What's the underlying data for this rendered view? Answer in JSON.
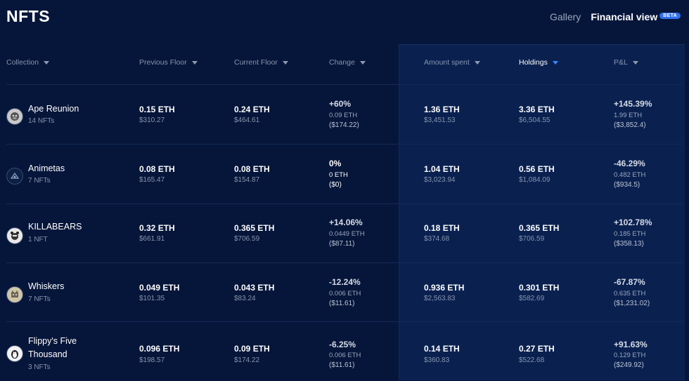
{
  "page": {
    "title": "NFTS",
    "tabs": {
      "gallery": "Gallery",
      "financial": "Financial view",
      "beta": "BETA"
    }
  },
  "columns": {
    "collection": "Collection",
    "previous_floor": "Previous Floor",
    "current_floor": "Current Floor",
    "change": "Change",
    "amount_spent": "Amount spent",
    "holdings": "Holdings",
    "pnl": "P&L"
  },
  "rows": [
    {
      "name": "Ape Reunion",
      "count": "14 NFTs",
      "avatar_icon": "ape-avatar-icon",
      "prev_eth": "0.15 ETH",
      "prev_usd": "$310.27",
      "curr_eth": "0.24 ETH",
      "curr_usd": "$464.61",
      "change_pct": "+60%",
      "change_eth": "0.09 ETH",
      "change_usd": "($174.22)",
      "spent_eth": "1.36 ETH",
      "spent_usd": "$3,451.53",
      "hold_eth": "3.36 ETH",
      "hold_usd": "$6,504.55",
      "pnl_pct": "+145.39%",
      "pnl_eth": "1.99 ETH",
      "pnl_usd": "($3,852.4)"
    },
    {
      "name": "Animetas",
      "count": "7 NFTs",
      "avatar_icon": "animetas-avatar-icon",
      "prev_eth": "0.08 ETH",
      "prev_usd": "$165.47",
      "curr_eth": "0.08 ETH",
      "curr_usd": "$154.87",
      "change_pct": "0%",
      "change_eth": "0 ETH",
      "change_usd": "($0)",
      "spent_eth": "1.04 ETH",
      "spent_usd": "$3,023.94",
      "hold_eth": "0.56 ETH",
      "hold_usd": "$1,084.09",
      "pnl_pct": "-46.29%",
      "pnl_eth": "0.482 ETH",
      "pnl_usd": "($934.5)"
    },
    {
      "name": "KILLABEARS",
      "count": "1 NFT",
      "avatar_icon": "bear-avatar-icon",
      "prev_eth": "0.32 ETH",
      "prev_usd": "$661.91",
      "curr_eth": "0.365 ETH",
      "curr_usd": "$706.59",
      "change_pct": "+14.06%",
      "change_eth": "0.0449 ETH",
      "change_usd": "($87.11)",
      "spent_eth": "0.18 ETH",
      "spent_usd": "$374.68",
      "hold_eth": "0.365 ETH",
      "hold_usd": "$706.59",
      "pnl_pct": "+102.78%",
      "pnl_eth": "0.185 ETH",
      "pnl_usd": "($358.13)"
    },
    {
      "name": "Whiskers",
      "count": "7 NFTs",
      "avatar_icon": "cat-avatar-icon",
      "prev_eth": "0.049 ETH",
      "prev_usd": "$101.35",
      "curr_eth": "0.043 ETH",
      "curr_usd": "$83.24",
      "change_pct": "-12.24%",
      "change_eth": "0.006 ETH",
      "change_usd": "($11.61)",
      "spent_eth": "0.936 ETH",
      "spent_usd": "$2,563.83",
      "hold_eth": "0.301 ETH",
      "hold_usd": "$582.69",
      "pnl_pct": "-67.87%",
      "pnl_eth": "0.635 ETH",
      "pnl_usd": "($1,231.02)"
    },
    {
      "name_line1": "Flippy's Five",
      "name_line2": "Thousand",
      "count": "3 NFTs",
      "avatar_icon": "penguin-avatar-icon",
      "prev_eth": "0.096 ETH",
      "prev_usd": "$198.57",
      "curr_eth": "0.09 ETH",
      "curr_usd": "$174.22",
      "change_pct": "-6.25%",
      "change_eth": "0.006 ETH",
      "change_usd": "($11.61)",
      "spent_eth": "0.14 ETH",
      "spent_usd": "$360.83",
      "hold_eth": "0.27 ETH",
      "hold_usd": "$522.68",
      "pnl_pct": "+91.63%",
      "pnl_eth": "0.129 ETH",
      "pnl_usd": "($249.92)"
    }
  ],
  "colors": {
    "background": "#06163a",
    "highlight": "#0a2150",
    "accent": "#3b8cff"
  }
}
